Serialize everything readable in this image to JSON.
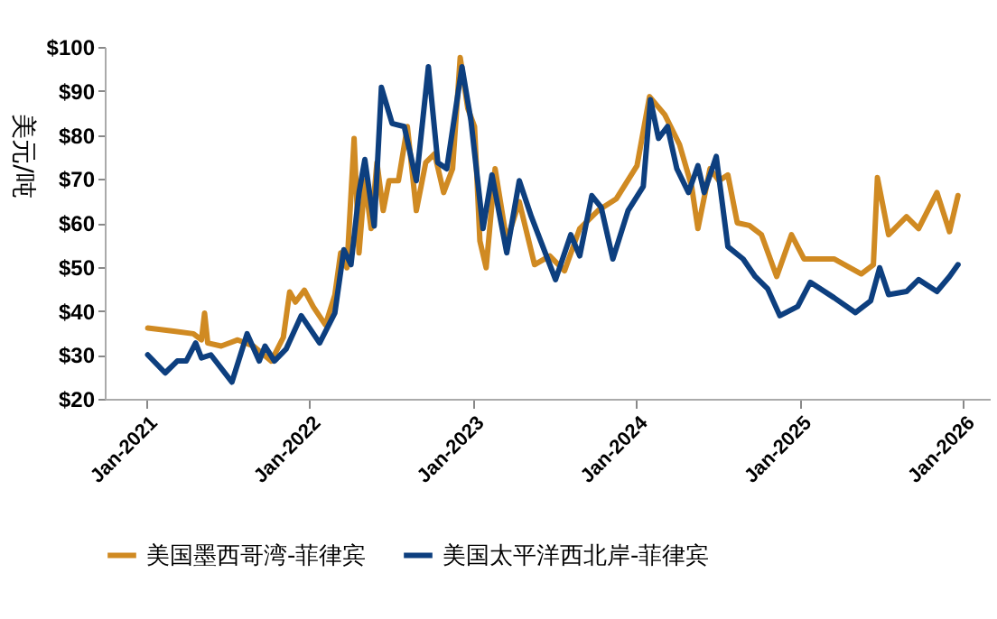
{
  "chart_data": {
    "type": "line",
    "ylabel": "美元/吨",
    "legend": "bottom",
    "line_style": "solid",
    "grid": false,
    "xlim": [
      "2020-10-01",
      "2026-03-01"
    ],
    "xticks": [
      {
        "value": "2021-01-01",
        "label": "Jan-2021"
      },
      {
        "value": "2022-01-01",
        "label": "Jan-2022"
      },
      {
        "value": "2023-01-01",
        "label": "Jan-2023"
      },
      {
        "value": "2024-01-01",
        "label": "Jan-2024"
      },
      {
        "value": "2025-01-01",
        "label": "Jan-2025"
      },
      {
        "value": "2026-01-01",
        "label": "Jan-2026"
      }
    ],
    "ylim": [
      20,
      100
    ],
    "yticks": [
      {
        "value": 20,
        "label": "$20"
      },
      {
        "value": 30,
        "label": "$30"
      },
      {
        "value": 40,
        "label": "$40"
      },
      {
        "value": 50,
        "label": "$50"
      },
      {
        "value": 60,
        "label": "$60"
      },
      {
        "value": 70,
        "label": "$70"
      },
      {
        "value": 80,
        "label": "$80"
      },
      {
        "value": 90,
        "label": "$90"
      },
      {
        "value": 100,
        "label": "$100"
      }
    ],
    "series": [
      {
        "name": "美国墨西哥湾-菲律宾",
        "color": "#d08a22",
        "x": [
          "2021-01-05",
          "2021-03-04",
          "2021-04-17",
          "2021-05-05",
          "2021-05-12",
          "2021-05-19",
          "2021-06-18",
          "2021-07-25",
          "2021-08-29",
          "2021-10-08",
          "2021-11-04",
          "2021-11-18",
          "2021-12-01",
          "2021-12-21",
          "2022-01-10",
          "2022-02-06",
          "2022-02-27",
          "2022-03-12",
          "2022-03-26",
          "2022-04-11",
          "2022-04-22",
          "2022-05-05",
          "2022-05-19",
          "2022-06-01",
          "2022-06-15",
          "2022-06-28",
          "2022-07-19",
          "2022-08-08",
          "2022-08-28",
          "2022-09-18",
          "2022-10-08",
          "2022-10-28",
          "2022-11-17",
          "2022-12-04",
          "2022-12-21",
          "2023-01-05",
          "2023-01-17",
          "2023-01-31",
          "2023-02-20",
          "2023-03-18",
          "2023-04-15",
          "2023-05-19",
          "2023-06-22",
          "2023-07-25",
          "2023-08-28",
          "2023-10-08",
          "2023-11-18",
          "2024-01-03",
          "2024-01-31",
          "2024-03-05",
          "2024-04-07",
          "2024-05-04",
          "2024-05-18",
          "2024-06-14",
          "2024-07-04",
          "2024-07-24",
          "2024-08-14",
          "2024-09-10",
          "2024-10-07",
          "2024-11-10",
          "2024-12-13",
          "2025-01-10",
          "2025-03-18",
          "2025-05-18",
          "2025-06-14",
          "2025-06-23",
          "2025-07-18",
          "2025-08-27",
          "2025-09-23",
          "2025-11-03",
          "2025-12-01",
          "2025-12-20"
        ],
        "values": [
          36.1,
          35.4,
          34.8,
          33.4,
          39.5,
          32.7,
          32,
          33.4,
          32,
          28.6,
          34,
          44.3,
          42,
          44.7,
          40.9,
          36.8,
          43.6,
          53.2,
          49.8,
          79.2,
          53.2,
          69.6,
          58.7,
          73.7,
          62.8,
          69.6,
          69.6,
          81.9,
          62.8,
          73.7,
          75.7,
          66.9,
          72.3,
          97.6,
          86,
          81.9,
          55.9,
          49.8,
          72.3,
          55.9,
          64.8,
          50.5,
          52.5,
          49.1,
          58.7,
          62.8,
          65.5,
          73,
          88.7,
          84.6,
          77.8,
          68.3,
          58.7,
          72.3,
          69.6,
          70.9,
          60,
          59.4,
          57.3,
          47.8,
          57.3,
          51.8,
          51.8,
          48.4,
          50.5,
          70.3,
          57.3,
          61.4,
          58.7,
          66.9,
          58,
          66.2
        ]
      },
      {
        "name": "美国太平洋西北岸-菲律宾",
        "color": "#0d3f7f",
        "x": [
          "2021-01-05",
          "2021-02-13",
          "2021-03-12",
          "2021-04-01",
          "2021-04-22",
          "2021-05-05",
          "2021-05-26",
          "2021-07-12",
          "2021-08-15",
          "2021-09-11",
          "2021-09-24",
          "2021-10-15",
          "2021-11-10",
          "2021-12-14",
          "2022-01-24",
          "2022-02-27",
          "2022-03-19",
          "2022-04-04",
          "2022-04-22",
          "2022-05-05",
          "2022-05-26",
          "2022-06-11",
          "2022-07-05",
          "2022-08-01",
          "2022-08-28",
          "2022-09-24",
          "2022-10-15",
          "2022-11-04",
          "2022-12-08",
          "2022-12-28",
          "2023-01-24",
          "2023-02-13",
          "2023-03-18",
          "2023-04-15",
          "2023-05-12",
          "2023-07-05",
          "2023-08-08",
          "2023-08-28",
          "2023-09-24",
          "2023-10-15",
          "2023-11-10",
          "2023-12-14",
          "2024-01-17",
          "2024-02-02",
          "2024-02-20",
          "2024-03-11",
          "2024-04-01",
          "2024-04-27",
          "2024-05-18",
          "2024-06-01",
          "2024-06-28",
          "2024-07-24",
          "2024-08-27",
          "2024-09-23",
          "2024-10-21",
          "2024-11-17",
          "2024-12-27",
          "2025-01-24",
          "2025-03-18",
          "2025-05-05",
          "2025-06-08",
          "2025-06-28",
          "2025-07-18",
          "2025-08-27",
          "2025-09-23",
          "2025-11-03",
          "2025-12-01",
          "2025-12-20"
        ],
        "values": [
          30,
          25.9,
          28.6,
          28.6,
          32.7,
          29.3,
          30,
          23.8,
          34.8,
          28.6,
          32,
          28.6,
          31.3,
          38.9,
          32.7,
          39.5,
          53.9,
          50.5,
          66.9,
          74.4,
          59.3,
          90.8,
          82.6,
          81.9,
          69.6,
          95.5,
          73.7,
          72.3,
          95.5,
          83.3,
          58.7,
          70.9,
          53.2,
          69.6,
          61.4,
          47.1,
          57.3,
          52.5,
          66.2,
          63.5,
          51.8,
          62.8,
          68.3,
          88,
          79.2,
          81.9,
          72.3,
          66.9,
          73,
          66.9,
          75.1,
          54.6,
          51.8,
          47.8,
          45,
          38.9,
          41,
          46.5,
          43,
          39.6,
          42.3,
          49.8,
          43.7,
          44.4,
          47.1,
          44.4,
          47.8,
          50.5
        ]
      }
    ]
  }
}
